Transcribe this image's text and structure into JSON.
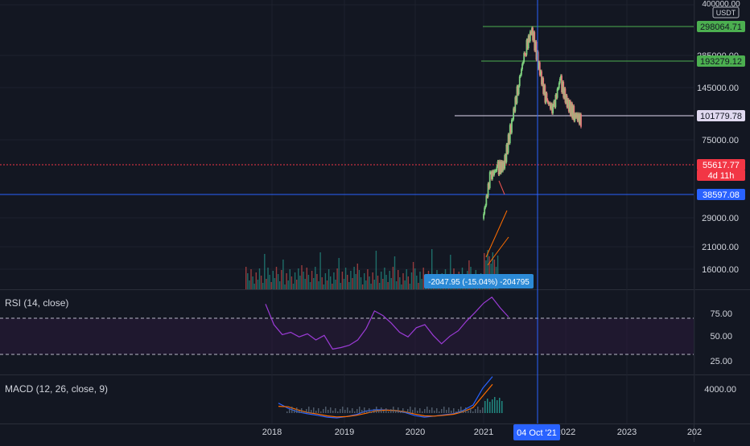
{
  "colors": {
    "bg": "#131722",
    "grid": "#1e222d",
    "up": "#26a69a",
    "down": "#ef5350",
    "up_soft": "#7fd17f",
    "down_soft": "#e87b7b",
    "rsi_line": "#9b3bd6",
    "rsi_band": "#2a1a3a",
    "macd_line": "#2962ff",
    "signal_line": "#ff6d00",
    "crosshair": "#2962ff",
    "current_price": "#f23645",
    "support_line": "#2962ff"
  },
  "price_axis": {
    "currency": "USDT",
    "ticks": [
      "400000.00",
      "285000.00",
      "145000.00",
      "75000.00",
      "29000.00",
      "21000.00",
      "16000.00"
    ]
  },
  "price_labels": [
    {
      "id": "level-1",
      "text": "298064.71",
      "bg": "#4caf50",
      "fg": "#131722"
    },
    {
      "id": "level-2",
      "text": "193279.12",
      "bg": "#4caf50",
      "fg": "#131722"
    },
    {
      "id": "level-3",
      "text": "101779.78",
      "bg": "#e0d9f0",
      "fg": "#131722"
    },
    {
      "id": "current",
      "text": "55617.77",
      "bg": "#f23645",
      "fg": "#ffffff"
    },
    {
      "id": "countdown",
      "text": "4d 11h",
      "bg": "#f23645",
      "fg": "#ffffff"
    },
    {
      "id": "support",
      "text": "38597.08",
      "bg": "#2962ff",
      "fg": "#ffffff"
    }
  ],
  "measure_label": "-2047.95 (-15.04%) -204795",
  "rsi": {
    "title": "RSI (14, close)",
    "ticks": [
      "75.00",
      "50.00",
      "25.00"
    ]
  },
  "macd": {
    "title": "MACD (12, 26, close, 9)",
    "ticks": [
      "4000.00"
    ]
  },
  "time_axis": {
    "labels": [
      "2018",
      "2019",
      "2020",
      "2021",
      "2022",
      "2023",
      "202"
    ],
    "crosshair_label": "04 Oct '21"
  },
  "chart_data": [
    {
      "type": "candlestick",
      "quote": "USDT",
      "y_scale": "log",
      "horizontal_levels": [
        298064.71,
        193279.12,
        101779.78,
        55617.77,
        38597.08
      ],
      "series": [
        {
          "name": "price",
          "x": [
            "2021-03",
            "2021-04",
            "2021-05",
            "2021-06",
            "2021-07",
            "2021-08",
            "2021-09",
            "2021-10",
            "2021-11",
            "2021-12",
            "2022-01",
            "2022-02",
            "2022-03",
            "2022-04",
            "2022-05"
          ],
          "values": [
            32000,
            52000,
            58000,
            60000,
            95000,
            150000,
            230000,
            298064,
            190000,
            130000,
            115000,
            165000,
            125000,
            110000,
            101780
          ]
        }
      ]
    },
    {
      "type": "line",
      "title": "RSI (14, close)",
      "ylim": [
        0,
        100
      ],
      "bands": [
        30,
        70
      ],
      "series": [
        {
          "values": [
            87,
            60,
            47,
            50,
            44,
            48,
            40,
            46,
            28,
            30,
            33,
            40,
            55,
            78,
            72,
            62,
            50,
            44,
            56,
            60,
            46,
            35,
            45,
            52,
            65,
            76,
            88,
            96,
            82,
            70
          ]
        }
      ]
    },
    {
      "type": "line",
      "title": "MACD (12, 26, close, 9)",
      "series": [
        {
          "values": [
            3200,
            1200,
            -200,
            -900,
            -1500,
            -2200,
            -2500,
            -2000,
            -1200,
            200,
            700,
            600,
            300,
            -400,
            -1600,
            -2200,
            -1800,
            -1300,
            -900,
            400,
            2500,
            9000,
            13500
          ]
        },
        {
          "values": [
            2000,
            1800,
            600,
            -400,
            -1000,
            -1700,
            -2100,
            -2000,
            -1500,
            -700,
            200,
            500,
            350,
            -100,
            -1000,
            -1700,
            -1800,
            -1500,
            -1100,
            -100,
            1500,
            6000,
            10500
          ]
        }
      ]
    }
  ]
}
